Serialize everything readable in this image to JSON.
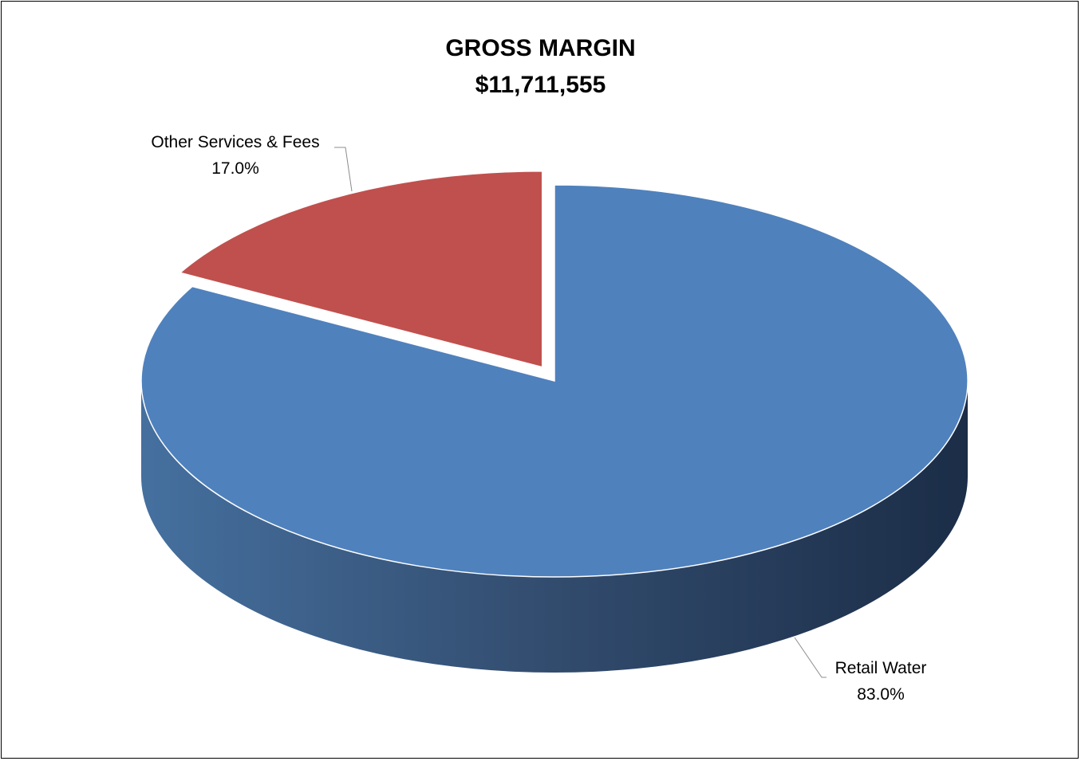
{
  "chart_data": {
    "type": "pie",
    "title": "GROSS MARGIN",
    "subtitle": "$11,711,555",
    "categories": [
      "Retail Water",
      "Other Services & Fees"
    ],
    "values": [
      83.0,
      17.0
    ],
    "labels": [
      {
        "name": "Retail Water",
        "percent": "83.0%"
      },
      {
        "name": "Other Services & Fees",
        "percent": "17.0%"
      }
    ],
    "colors": [
      "#4F81BD",
      "#C0504D"
    ],
    "three_d": true,
    "exploded": "Other Services & Fees",
    "legend": "none"
  }
}
